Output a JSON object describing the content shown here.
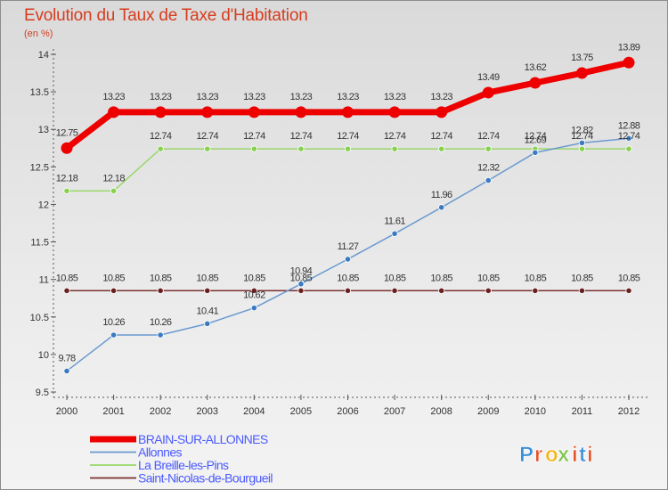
{
  "title": "Evolution du Taux de Taxe d'Habitation",
  "unit_label": "(en %)",
  "logo_text": "Proxiti",
  "chart_data": {
    "type": "line",
    "title": "Evolution du Taux de Taxe d'Habitation",
    "ylabel": "(en %)",
    "xlabel": "",
    "x": [
      "2000",
      "2001",
      "2002",
      "2003",
      "2004",
      "2005",
      "2006",
      "2007",
      "2008",
      "2009",
      "2010",
      "2011",
      "2012"
    ],
    "ylim": [
      9.5,
      14
    ],
    "yticks": [
      "9.5",
      "10",
      "10.5",
      "11",
      "11.5",
      "12",
      "12.5",
      "13",
      "13.5",
      "14"
    ],
    "grid": "off",
    "legend_placement": "bottom-left",
    "series": [
      {
        "name": "BRAIN-SUR-ALLONNES",
        "color": "#ee0000",
        "legend_color": "#4a5aff",
        "values": [
          12.75,
          13.23,
          13.23,
          13.23,
          13.23,
          13.23,
          13.23,
          13.23,
          13.23,
          13.49,
          13.62,
          13.75,
          13.89
        ]
      },
      {
        "name": "Allonnes",
        "color": "#6a9ad0",
        "legend_color": "#4a5aff",
        "values": [
          9.78,
          10.26,
          10.26,
          10.41,
          10.62,
          10.94,
          11.27,
          11.61,
          11.96,
          12.32,
          12.69,
          12.82,
          12.88
        ]
      },
      {
        "name": "La Breille-les-Pins",
        "color": "#9ad86a",
        "legend_color": "#4a5aff",
        "values": [
          12.18,
          12.18,
          12.74,
          12.74,
          12.74,
          12.74,
          12.74,
          12.74,
          12.74,
          12.74,
          12.74,
          12.74,
          12.74
        ]
      },
      {
        "name": "Saint-Nicolas-de-Bourgueil",
        "color": "#7a3030",
        "legend_color": "#4a5aff",
        "values": [
          10.85,
          10.85,
          10.85,
          10.85,
          10.85,
          10.85,
          10.85,
          10.85,
          10.85,
          10.85,
          10.85,
          10.85,
          10.85
        ]
      }
    ]
  }
}
